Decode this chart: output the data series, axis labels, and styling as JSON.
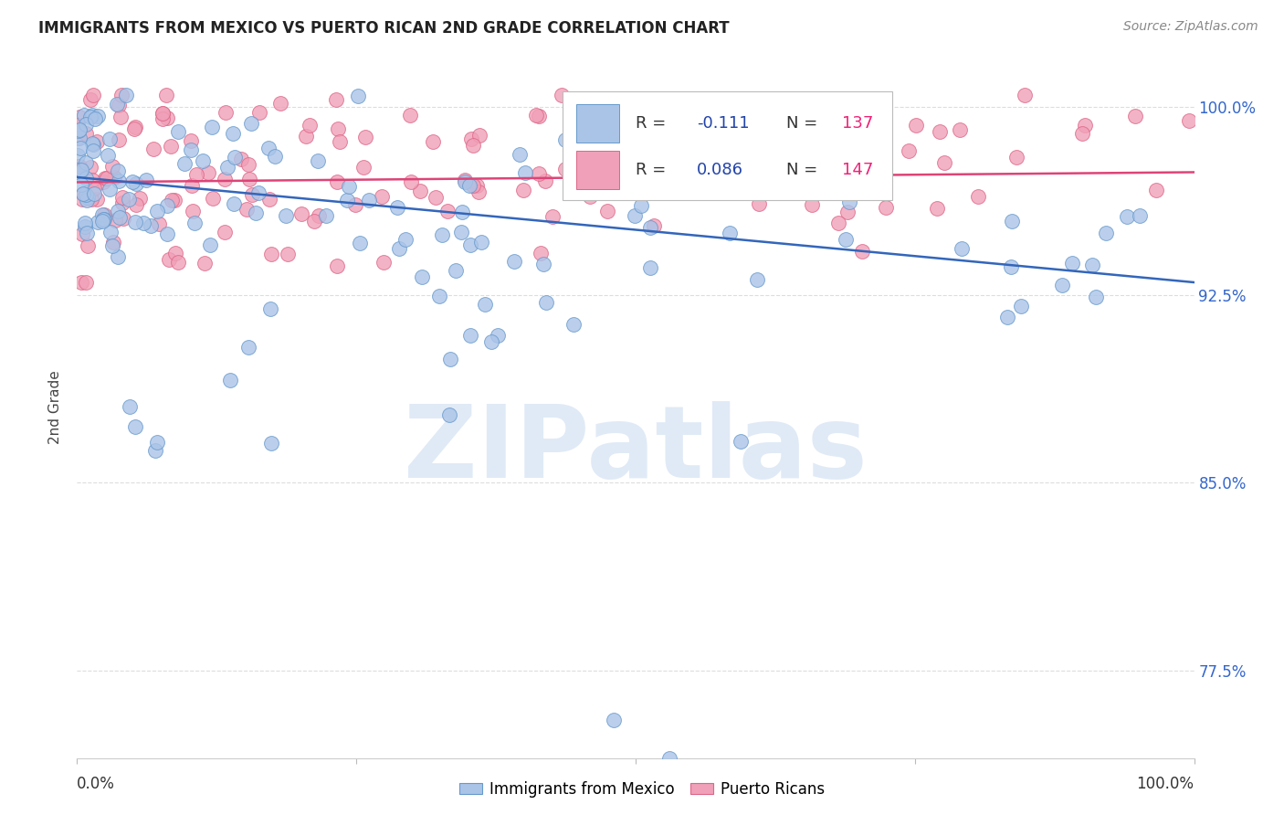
{
  "title": "IMMIGRANTS FROM MEXICO VS PUERTO RICAN 2ND GRADE CORRELATION CHART",
  "source": "Source: ZipAtlas.com",
  "ylabel": "2nd Grade",
  "ytick_labels": [
    "77.5%",
    "85.0%",
    "92.5%",
    "100.0%"
  ],
  "ytick_values": [
    0.775,
    0.85,
    0.925,
    1.0
  ],
  "legend_blue_label": "Immigrants from Mexico",
  "legend_pink_label": "Puerto Ricans",
  "blue_face_color": "#aac4e8",
  "blue_edge_color": "#6699cc",
  "pink_face_color": "#f0a0b8",
  "pink_edge_color": "#dd6688",
  "blue_line_color": "#3366bb",
  "pink_line_color": "#dd4477",
  "watermark_text": "ZIPatlas",
  "watermark_color": "#ccddf0",
  "xmin": 0.0,
  "xmax": 1.0,
  "ymin": 0.74,
  "ymax": 1.02,
  "blue_line_x0": 0.0,
  "blue_line_y0": 0.972,
  "blue_line_x1": 1.0,
  "blue_line_y1": 0.93,
  "pink_line_x0": 0.0,
  "pink_line_y0": 0.97,
  "pink_line_x1": 1.0,
  "pink_line_y1": 0.974,
  "grid_color": "#dddddd",
  "background_color": "#ffffff",
  "r_value_color": "#2244aa",
  "n_value_color": "#ee2277",
  "legend_r_color": "#333333",
  "title_color": "#222222",
  "source_color": "#888888",
  "ytick_color": "#3366cc",
  "xlabel_color": "#333333"
}
